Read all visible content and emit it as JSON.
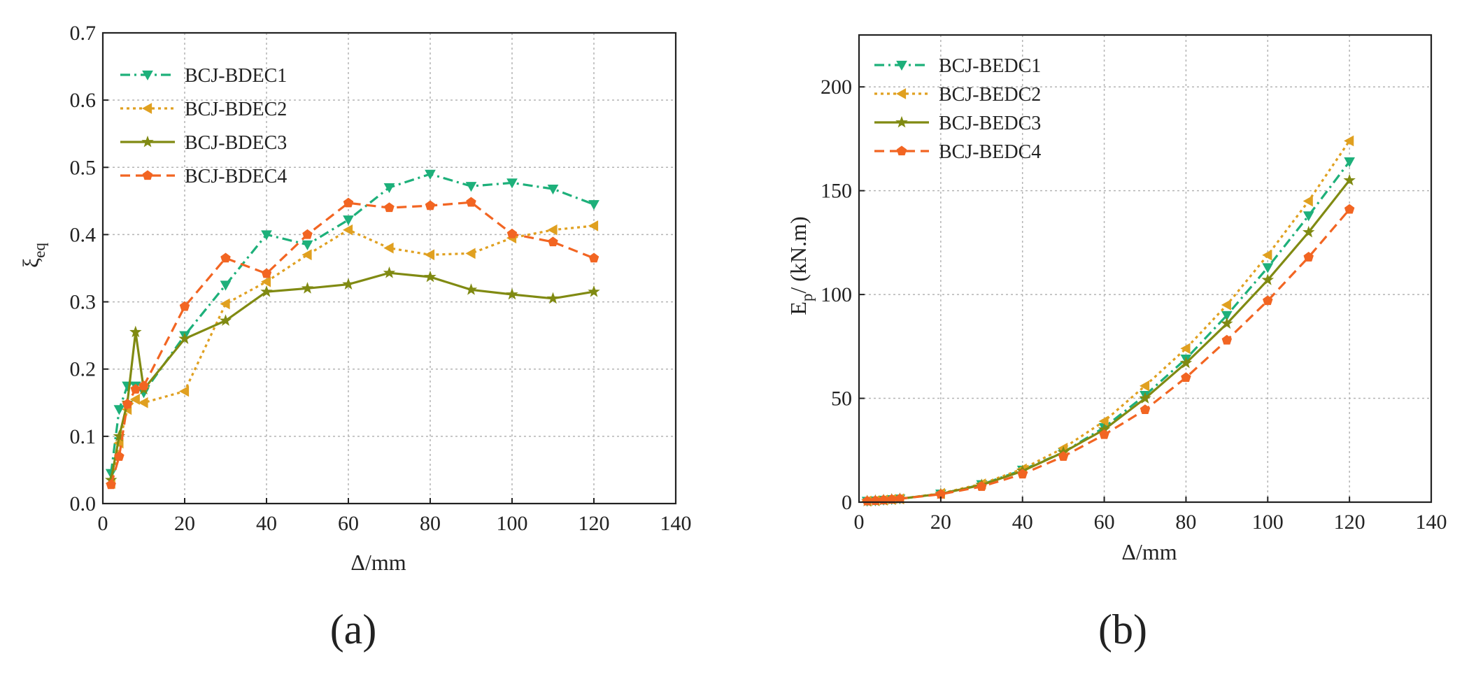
{
  "colors": {
    "c1": "#1db07a",
    "c2": "#e0a020",
    "c3": "#808a12",
    "c4": "#f26522"
  },
  "chart_data": [
    {
      "type": "line",
      "panel_label": "(a)",
      "xlabel": "Δ/mm",
      "ylabel": "ξ",
      "ylabel_sub": "eq",
      "xlim": [
        0,
        140
      ],
      "ylim": [
        0,
        0.7
      ],
      "xticks": [
        "0",
        "20",
        "40",
        "60",
        "80",
        "100",
        "120",
        "140"
      ],
      "yticks": [
        "0.0",
        "0.1",
        "0.2",
        "0.3",
        "0.4",
        "0.5",
        "0.6",
        "0.7"
      ],
      "grid": true,
      "legend_position": "top-left",
      "series": [
        {
          "name": "BCJ-BDEC1",
          "marker": "triangle-down",
          "dash": "dashdot",
          "color_key": "c1",
          "x": [
            2,
            4,
            6,
            8,
            10,
            20,
            30,
            40,
            50,
            60,
            70,
            80,
            90,
            100,
            110,
            120
          ],
          "y": [
            0.045,
            0.14,
            0.175,
            0.175,
            0.165,
            0.25,
            0.325,
            0.4,
            0.385,
            0.422,
            0.47,
            0.49,
            0.472,
            0.477,
            0.468,
            0.445
          ]
        },
        {
          "name": "BCJ-BDEC2",
          "marker": "triangle-left",
          "dash": "dot",
          "color_key": "c2",
          "x": [
            2,
            4,
            6,
            8,
            10,
            20,
            30,
            40,
            50,
            60,
            70,
            80,
            90,
            100,
            110,
            120
          ],
          "y": [
            0.03,
            0.09,
            0.14,
            0.155,
            0.15,
            0.167,
            0.297,
            0.33,
            0.37,
            0.407,
            0.38,
            0.37,
            0.372,
            0.395,
            0.407,
            0.413
          ]
        },
        {
          "name": "BCJ-BDEC3",
          "marker": "star",
          "dash": "solid",
          "color_key": "c3",
          "x": [
            2,
            4,
            6,
            8,
            10,
            20,
            30,
            40,
            50,
            60,
            70,
            80,
            90,
            100,
            110,
            120
          ],
          "y": [
            0.035,
            0.1,
            0.15,
            0.255,
            0.17,
            0.245,
            0.272,
            0.315,
            0.32,
            0.326,
            0.343,
            0.337,
            0.318,
            0.311,
            0.305,
            0.315
          ]
        },
        {
          "name": "BCJ-BDEC4",
          "marker": "pentagon",
          "dash": "dashed",
          "color_key": "c4",
          "x": [
            2,
            4,
            6,
            8,
            10,
            20,
            30,
            40,
            50,
            60,
            70,
            80,
            90,
            100,
            110,
            120
          ],
          "y": [
            0.028,
            0.07,
            0.148,
            0.17,
            0.175,
            0.293,
            0.365,
            0.342,
            0.4,
            0.447,
            0.44,
            0.443,
            0.448,
            0.401,
            0.389,
            0.365
          ]
        }
      ]
    },
    {
      "type": "line",
      "panel_label": "(b)",
      "xlabel": "Δ/mm",
      "ylabel": "E",
      "ylabel_sub": "p",
      "ylabel_rest": "/ (kN.m)",
      "xlim": [
        0,
        140
      ],
      "ylim": [
        0,
        225
      ],
      "xticks": [
        "0",
        "20",
        "40",
        "60",
        "80",
        "100",
        "120",
        "140"
      ],
      "yticks": [
        "0",
        "50",
        "100",
        "150",
        "200"
      ],
      "ytick_values": [
        0,
        50,
        100,
        150,
        200
      ],
      "grid": true,
      "legend_position": "top-left",
      "series": [
        {
          "name": "BCJ-BEDC1",
          "marker": "triangle-down",
          "dash": "dashdot",
          "color_key": "c1",
          "x": [
            2,
            4,
            6,
            8,
            10,
            20,
            30,
            40,
            50,
            60,
            70,
            80,
            90,
            100,
            110,
            120
          ],
          "y": [
            0.5,
            0.7,
            1.0,
            1.3,
            1.6,
            4.0,
            8.5,
            15.5,
            24.0,
            36.0,
            51.5,
            69.0,
            90.0,
            113.0,
            138.0,
            164.0
          ]
        },
        {
          "name": "BCJ-BEDC2",
          "marker": "triangle-left",
          "dash": "dot",
          "color_key": "c2",
          "x": [
            2,
            4,
            6,
            8,
            10,
            20,
            30,
            40,
            50,
            60,
            70,
            80,
            90,
            100,
            110,
            120
          ],
          "y": [
            0.5,
            0.7,
            1.0,
            1.3,
            1.6,
            4.2,
            8.8,
            16.0,
            26.0,
            39.0,
            56.0,
            74.0,
            95.0,
            119.0,
            145.0,
            174.0
          ]
        },
        {
          "name": "BCJ-BEDC3",
          "marker": "star",
          "dash": "solid",
          "color_key": "c3",
          "x": [
            2,
            4,
            6,
            8,
            10,
            20,
            30,
            40,
            50,
            60,
            70,
            80,
            90,
            100,
            110,
            120
          ],
          "y": [
            0.5,
            0.7,
            1.0,
            1.3,
            1.6,
            4.0,
            8.3,
            15.0,
            24.0,
            35.0,
            50.0,
            67.0,
            86.0,
            107.0,
            130.0,
            155.0
          ]
        },
        {
          "name": "BCJ-BEDC4",
          "marker": "pentagon",
          "dash": "dashed",
          "color_key": "c4",
          "x": [
            2,
            4,
            6,
            8,
            10,
            20,
            30,
            40,
            50,
            60,
            70,
            80,
            90,
            100,
            110,
            120
          ],
          "y": [
            0.5,
            0.7,
            1.0,
            1.3,
            1.6,
            3.8,
            7.5,
            13.5,
            22.0,
            32.5,
            44.5,
            60.0,
            78.0,
            97.0,
            118.0,
            141.0
          ]
        }
      ]
    }
  ]
}
